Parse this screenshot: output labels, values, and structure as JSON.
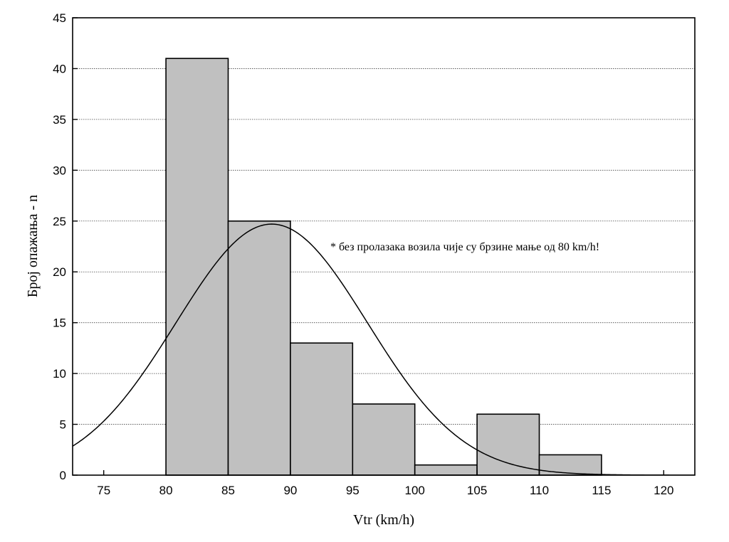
{
  "chart_data": {
    "type": "bar",
    "subtype": "histogram",
    "xlabel": "Vtr (km/h)",
    "ylabel": "Број опажања - n",
    "annotation": "* без пролазака возила чије су брзине мање од 80 km/h!",
    "xlim": [
      72.5,
      122.5
    ],
    "ylim": [
      0,
      45
    ],
    "xticks": [
      75,
      80,
      85,
      90,
      95,
      100,
      105,
      110,
      115,
      120
    ],
    "yticks": [
      0,
      5,
      10,
      15,
      20,
      25,
      30,
      35,
      40,
      45
    ],
    "grid": "horizontal",
    "bins": [
      {
        "from": 80,
        "to": 85,
        "count": 41
      },
      {
        "from": 85,
        "to": 90,
        "count": 25
      },
      {
        "from": 90,
        "to": 95,
        "count": 13
      },
      {
        "from": 95,
        "to": 100,
        "count": 7
      },
      {
        "from": 100,
        "to": 105,
        "count": 1
      },
      {
        "from": 105,
        "to": 110,
        "count": 6
      },
      {
        "from": 110,
        "to": 115,
        "count": 2
      }
    ],
    "fit_curve": {
      "type": "normal",
      "mean": 88.5,
      "sd": 7.7,
      "peak": 24.7
    }
  }
}
